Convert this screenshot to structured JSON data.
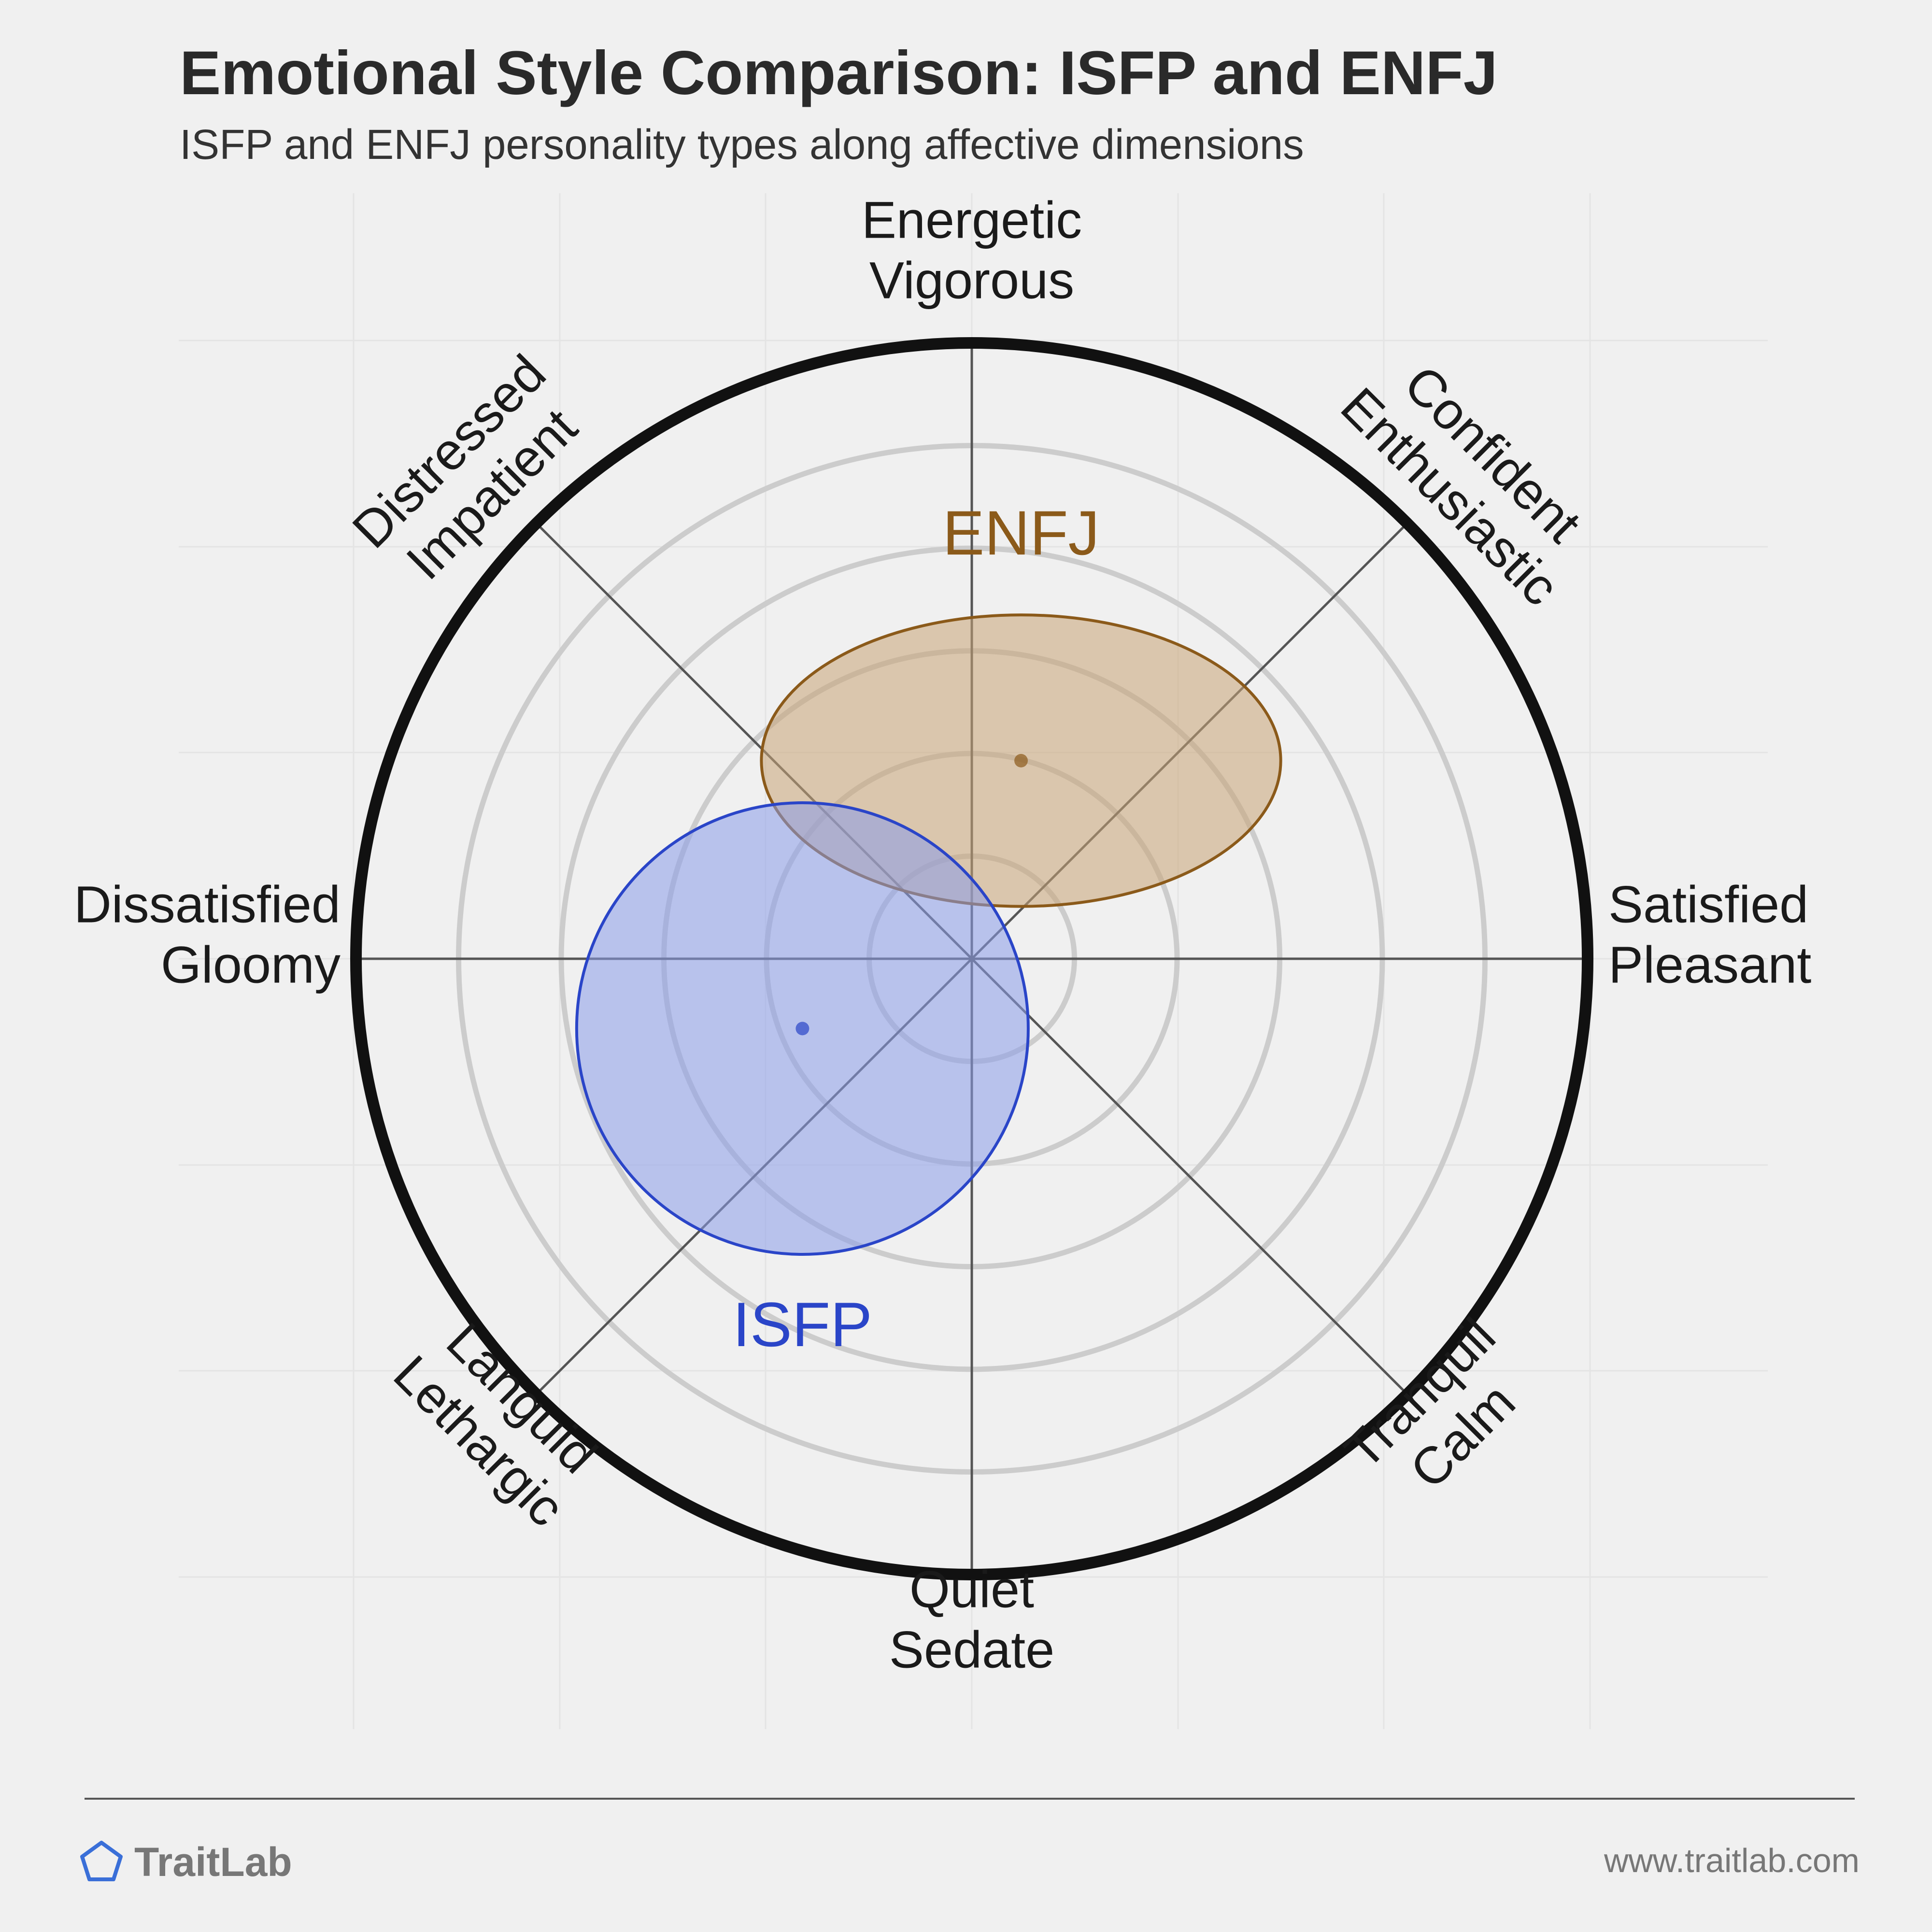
{
  "chart_data": {
    "type": "scatter",
    "title": "Emotional Style Comparison: ISFP and ENFJ",
    "subtitle": "ISFP and ENFJ personality types along affective dimensions",
    "axes": [
      {
        "id": "top",
        "lines": [
          "Energetic",
          "Vigorous"
        ]
      },
      {
        "id": "top-right",
        "lines": [
          "Confident",
          "Enthusiastic"
        ]
      },
      {
        "id": "right",
        "lines": [
          "Satisfied",
          "Pleasant"
        ]
      },
      {
        "id": "bottom-right",
        "lines": [
          "Tranquil",
          "Calm"
        ]
      },
      {
        "id": "bottom",
        "lines": [
          "Quiet",
          "Sedate"
        ]
      },
      {
        "id": "bottom-left",
        "lines": [
          "Languid",
          "Lethargic"
        ]
      },
      {
        "id": "left",
        "lines": [
          "Dissatisfied",
          "Gloomy"
        ]
      },
      {
        "id": "top-left",
        "lines": [
          "Distressed",
          "Impatient"
        ]
      }
    ],
    "range": [
      -6,
      6
    ],
    "rings": [
      1,
      2,
      3,
      4,
      5
    ],
    "series": [
      {
        "name": "ENFJ",
        "x": 0.48,
        "y": 1.93,
        "spread_x": 2.53,
        "spread_y": 1.42,
        "color": "#8b5a1a",
        "fill": "#c8a477",
        "label_pos": "above"
      },
      {
        "name": "ISFP",
        "x": -1.65,
        "y": -0.68,
        "spread_x": 2.2,
        "spread_y": 2.2,
        "color": "#2a45c8",
        "fill": "#8a9cea",
        "label_pos": "below"
      }
    ]
  },
  "footer": {
    "brand": "TraitLab",
    "url": "www.traitlab.com",
    "brand_color": "#3a6fd8"
  }
}
